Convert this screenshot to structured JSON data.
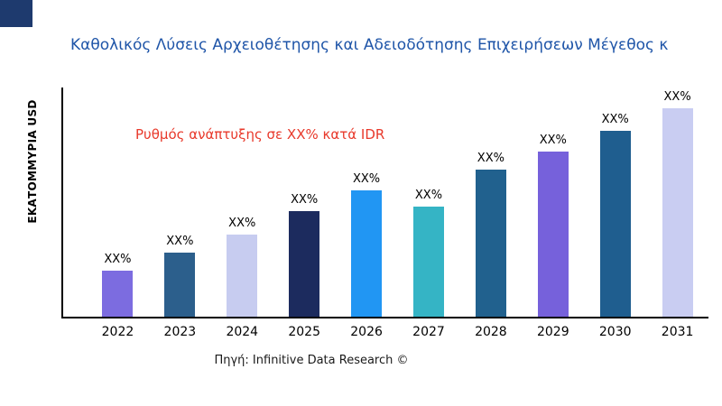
{
  "page": {
    "background": "#ffffff",
    "corner_accent_color": "#1E3A6E"
  },
  "chart_data": {
    "type": "bar",
    "title": "Καθολικός Λύσεις Αρχειοθέτησης και Αδειοδότησης Επιχειρήσεων Μέγεθος κ",
    "title_color": "#1F55A8",
    "ylabel": "ΕΚΑΤΟΜΜΥΡΙΑ USD",
    "xlabel": "",
    "categories": [
      "2022",
      "2023",
      "2024",
      "2025",
      "2026",
      "2027",
      "2028",
      "2029",
      "2030",
      "2031"
    ],
    "values": [
      20,
      28,
      36,
      46,
      55,
      48,
      64,
      72,
      81,
      91
    ],
    "ylim": [
      0,
      100
    ],
    "value_labels": [
      "XX%",
      "XX%",
      "XX%",
      "XX%",
      "XX%",
      "XX%",
      "XX%",
      "XX%",
      "XX%",
      "XX%"
    ],
    "bar_colors": [
      "#7C6CE0",
      "#2C5F8C",
      "#C7CCF0",
      "#1C2B5E",
      "#2196F3",
      "#35B4C5",
      "#21618E",
      "#7661DB",
      "#1F5E8F",
      "#C9CDF2"
    ],
    "grid": false,
    "legend": "none",
    "annotation": {
      "text": "Ρυθμός ανάπτυξης σε XX% κατά IDR",
      "color": "#E8392B"
    },
    "source": "Πηγή: Infinitive Data Research ©"
  }
}
